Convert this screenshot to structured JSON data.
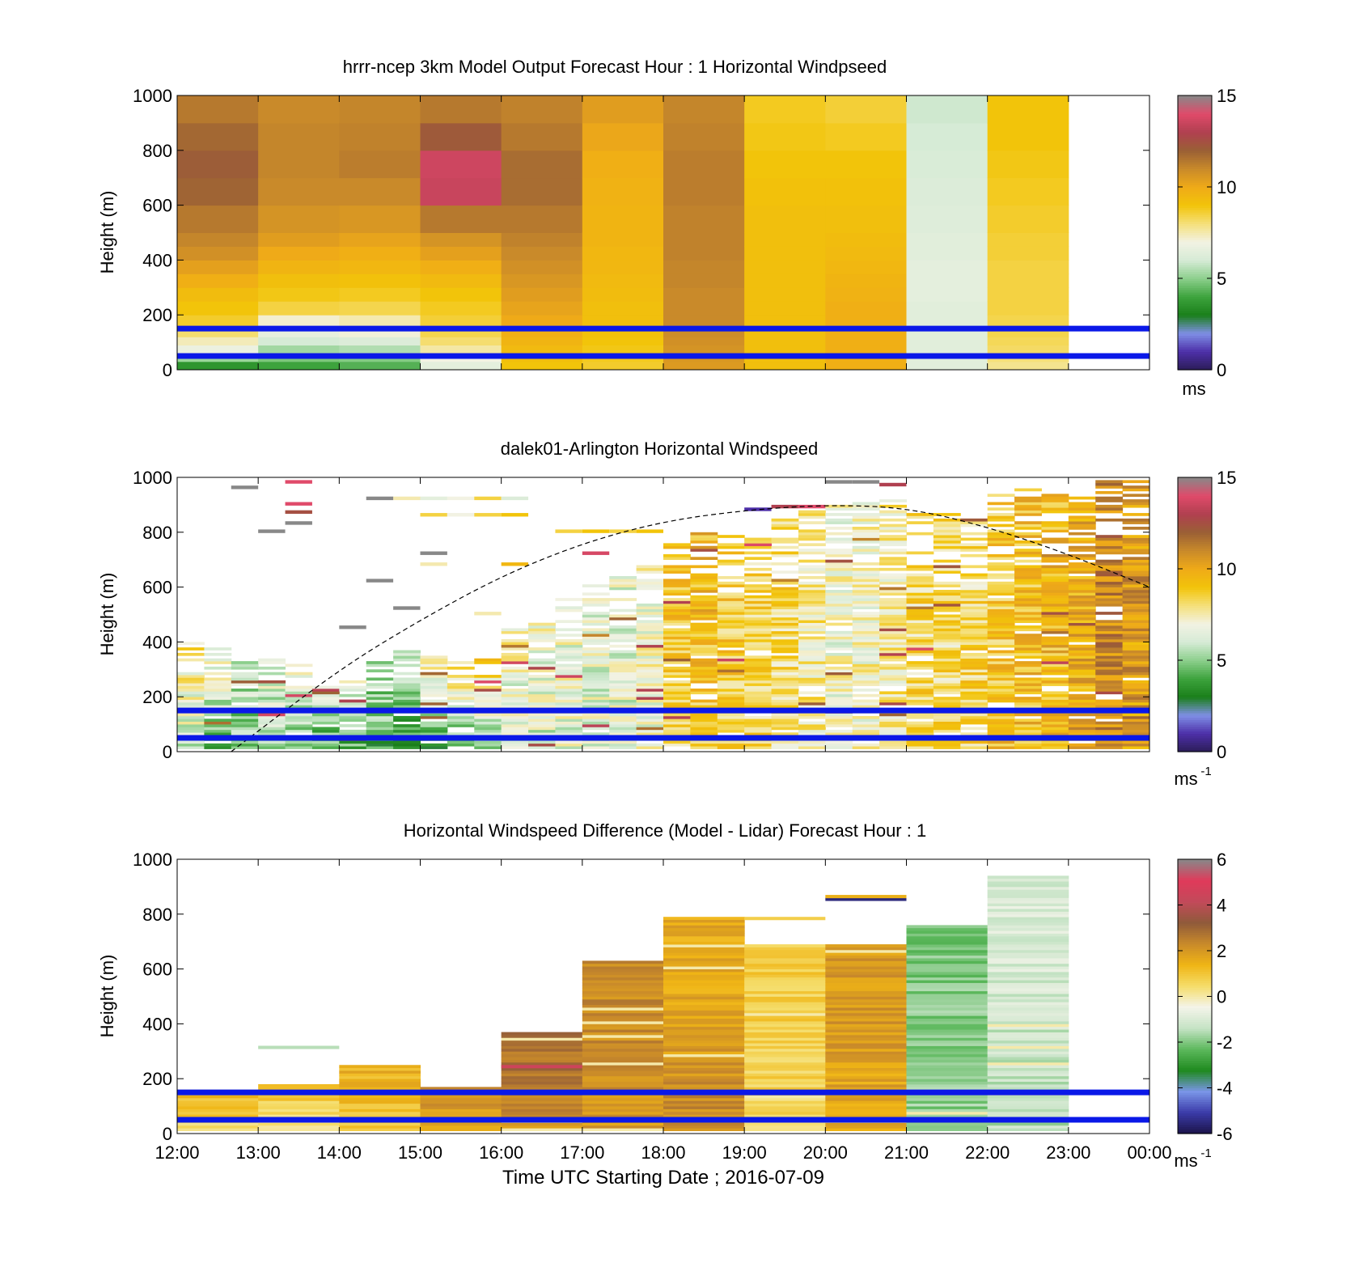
{
  "figure": {
    "x_label": "Time UTC  Starting Date ; 2016-07-09"
  },
  "colormaps": {
    "speed": [
      "#2b1d57",
      "#4d2fa8",
      "#7f8fe6",
      "#1a7f1a",
      "#3da33d",
      "#8ccf8c",
      "#d6ebd6",
      "#f2f2e3",
      "#f5e07a",
      "#f2c40a",
      "#efaa18",
      "#c98a2a",
      "#9a6035",
      "#b04050",
      "#e04a6a",
      "#888888"
    ],
    "diff": [
      "#1b1448",
      "#3b3aa8",
      "#7a95e8",
      "#1f8a1f",
      "#5cb85c",
      "#c5e3c5",
      "#f4f4ea",
      "#f5dd6a",
      "#f0b515",
      "#c98a2a",
      "#8f5a3a",
      "#c24a5a",
      "#e03a5a",
      "#888888"
    ]
  },
  "chart_data": [
    {
      "type": "heatmap",
      "title": "hrrr-ncep 3km Model Output   Forecast Hour : 1 Horizontal Windpseed",
      "ylabel": "Height (m)",
      "xlim": [
        "12:00",
        "00:00"
      ],
      "ylim": [
        0,
        1000
      ],
      "colorbar": {
        "min": 0,
        "max": 15,
        "ticks": [
          0,
          5,
          10,
          15
        ],
        "unit": "ms"
      },
      "heights": [
        0,
        30,
        60,
        90,
        120,
        150,
        200,
        250,
        300,
        350,
        400,
        450,
        500,
        600,
        700,
        800,
        900,
        1000
      ],
      "columns": [
        {
          "start": "12:00",
          "values": [
            3.6,
            5.2,
            6.8,
            7.4,
            8.1,
            8.7,
            9.0,
            9.3,
            9.8,
            10.3,
            10.8,
            11.1,
            11.4,
            11.9,
            12.1,
            11.8,
            11.4
          ]
        },
        {
          "start": "13:00",
          "values": [
            4.0,
            4.8,
            5.3,
            6.0,
            6.6,
            7.2,
            8.5,
            8.9,
            9.2,
            9.6,
            10.0,
            10.4,
            10.7,
            11.0,
            11.1,
            11.1,
            11.0
          ]
        },
        {
          "start": "14:00",
          "values": [
            4.3,
            4.9,
            5.5,
            6.2,
            7.1,
            7.5,
            8.4,
            8.8,
            9.1,
            9.5,
            9.8,
            10.2,
            10.6,
            11.0,
            11.3,
            11.2,
            11.1
          ]
        },
        {
          "start": "15:00",
          "values": [
            6.5,
            7.0,
            7.6,
            8.1,
            8.4,
            8.6,
            8.8,
            9.0,
            9.4,
            9.8,
            10.3,
            10.7,
            11.4,
            13.5,
            13.6,
            12.2,
            11.4
          ]
        },
        {
          "start": "16:00",
          "values": [
            9.0,
            9.2,
            9.4,
            9.6,
            9.8,
            10.0,
            10.2,
            10.4,
            10.6,
            10.8,
            11.0,
            11.2,
            11.4,
            11.7,
            11.7,
            11.4,
            11.2
          ]
        },
        {
          "start": "17:00",
          "values": [
            8.7,
            8.8,
            8.9,
            9.0,
            9.1,
            9.2,
            9.2,
            9.3,
            9.4,
            9.5,
            9.5,
            9.6,
            9.6,
            9.7,
            9.8,
            10.1,
            10.4
          ]
        },
        {
          "start": "18:00",
          "values": [
            10.5,
            10.6,
            10.7,
            10.8,
            10.9,
            11.0,
            11.0,
            11.0,
            11.1,
            11.1,
            11.2,
            11.2,
            11.2,
            11.3,
            11.3,
            11.2,
            11.1
          ]
        },
        {
          "start": "19:00",
          "values": [
            9.2,
            9.2,
            9.2,
            9.2,
            9.2,
            9.2,
            9.2,
            9.2,
            9.2,
            9.2,
            9.2,
            9.2,
            9.2,
            9.1,
            9.0,
            8.9,
            8.8
          ]
        },
        {
          "start": "20:00",
          "values": [
            9.8,
            9.8,
            9.8,
            9.8,
            9.8,
            9.8,
            9.8,
            9.7,
            9.6,
            9.5,
            9.4,
            9.3,
            9.2,
            9.1,
            9.0,
            8.8,
            8.6
          ]
        },
        {
          "start": "21:00",
          "values": [
            6.4,
            6.4,
            6.4,
            6.4,
            6.4,
            6.4,
            6.4,
            6.5,
            6.5,
            6.5,
            6.4,
            6.4,
            6.3,
            6.2,
            6.1,
            6.0,
            5.9
          ]
        },
        {
          "start": "22:00",
          "values": [
            7.8,
            8.0,
            8.2,
            8.3,
            8.4,
            8.4,
            8.5,
            8.5,
            8.5,
            8.5,
            8.6,
            8.6,
            8.7,
            8.8,
            8.9,
            9.0,
            9.0
          ]
        }
      ],
      "reference_lines_m": [
        50,
        150
      ]
    },
    {
      "type": "heatmap",
      "title": "dalek01-Arlington  Horizontal Windspeed",
      "ylabel": "Height (m)",
      "xlim": [
        "12:00",
        "00:00"
      ],
      "ylim": [
        0,
        1000
      ],
      "colorbar": {
        "min": 0,
        "max": 15,
        "ticks": [
          0,
          5,
          10,
          15
        ],
        "unit": "ms",
        "unit_exp": "-1"
      },
      "column_width_min": 20,
      "row_height_m": 10,
      "profile": [
        {
          "time": "12:00",
          "top": 400,
          "base": 6.0,
          "upper": 8.0
        },
        {
          "time": "12:20",
          "top": 380,
          "base": 4.5,
          "upper": 7.5
        },
        {
          "time": "12:40",
          "top": 360,
          "base": 4.5,
          "upper": 6.5
        },
        {
          "time": "13:00",
          "top": 360,
          "base": 5.0,
          "upper": 7.0
        },
        {
          "time": "13:20",
          "top": 330,
          "base": 4.0,
          "upper": 8.0
        },
        {
          "time": "13:40",
          "top": 250,
          "base": 4.0,
          "upper": 6.5
        },
        {
          "time": "14:00",
          "top": 260,
          "base": 4.2,
          "upper": 7.0
        },
        {
          "time": "14:20",
          "top": 350,
          "base": 4.0,
          "upper": 6.0
        },
        {
          "time": "14:40",
          "top": 380,
          "base": 3.8,
          "upper": 6.0
        },
        {
          "time": "15:00",
          "top": 350,
          "base": 4.0,
          "upper": 7.5
        },
        {
          "time": "15:20",
          "top": 350,
          "base": 4.5,
          "upper": 8.5
        },
        {
          "time": "15:40",
          "top": 340,
          "base": 5.0,
          "upper": 8.5
        },
        {
          "time": "16:00",
          "top": 450,
          "base": 6.0,
          "upper": 7.5
        },
        {
          "time": "16:20",
          "top": 480,
          "base": 6.2,
          "upper": 6.8
        },
        {
          "time": "16:40",
          "top": 560,
          "base": 6.5,
          "upper": 7.0
        },
        {
          "time": "17:00",
          "top": 620,
          "base": 6.5,
          "upper": 6.5
        },
        {
          "time": "17:20",
          "top": 650,
          "base": 6.4,
          "upper": 6.5
        },
        {
          "time": "17:40",
          "top": 680,
          "base": 6.8,
          "upper": 7.0
        },
        {
          "time": "18:00",
          "top": 760,
          "base": 8.5,
          "upper": 9.2
        },
        {
          "time": "18:20",
          "top": 800,
          "base": 8.8,
          "upper": 9.5
        },
        {
          "time": "18:40",
          "top": 800,
          "base": 8.6,
          "upper": 9.0
        },
        {
          "time": "19:00",
          "top": 830,
          "base": 8.2,
          "upper": 8.5
        },
        {
          "time": "19:20",
          "top": 860,
          "base": 8.0,
          "upper": 8.4
        },
        {
          "time": "19:40",
          "top": 880,
          "base": 7.5,
          "upper": 7.8
        },
        {
          "time": "20:00",
          "top": 900,
          "base": 7.0,
          "upper": 6.8
        },
        {
          "time": "20:20",
          "top": 920,
          "base": 7.2,
          "upper": 7.2
        },
        {
          "time": "20:40",
          "top": 920,
          "base": 7.5,
          "upper": 7.5
        },
        {
          "time": "21:00",
          "top": 900,
          "base": 8.5,
          "upper": 8.0
        },
        {
          "time": "21:20",
          "top": 880,
          "base": 8.2,
          "upper": 8.0
        },
        {
          "time": "21:40",
          "top": 860,
          "base": 8.5,
          "upper": 8.2
        },
        {
          "time": "22:00",
          "top": 940,
          "base": 9.0,
          "upper": 8.8
        },
        {
          "time": "22:20",
          "top": 960,
          "base": 9.2,
          "upper": 9.2
        },
        {
          "time": "22:40",
          "top": 970,
          "base": 9.4,
          "upper": 9.4
        },
        {
          "time": "23:00",
          "top": 980,
          "base": 9.8,
          "upper": 9.8
        },
        {
          "time": "23:20",
          "top": 990,
          "base": 10.8,
          "upper": 11.2
        },
        {
          "time": "23:40",
          "top": 1000,
          "base": 10.2,
          "upper": 10.6
        }
      ],
      "sparse_cells": [
        {
          "time": "12:40",
          "height": 960,
          "value": 15.0
        },
        {
          "time": "13:20",
          "height": 980,
          "value": 14.0
        },
        {
          "time": "13:20",
          "height": 900,
          "value": 14.0
        },
        {
          "time": "13:20",
          "height": 870,
          "value": 12.5
        },
        {
          "time": "13:00",
          "height": 800,
          "value": 15.0
        },
        {
          "time": "13:20",
          "height": 830,
          "value": 15.0
        },
        {
          "time": "14:20",
          "height": 620,
          "value": 15.0
        },
        {
          "time": "14:40",
          "height": 520,
          "value": 15.0
        },
        {
          "time": "14:00",
          "height": 450,
          "value": 15.0
        },
        {
          "time": "15:00",
          "height": 720,
          "value": 15.0
        },
        {
          "time": "15:00",
          "height": 680,
          "value": 7.5
        },
        {
          "time": "15:40",
          "height": 500,
          "value": 7.5
        },
        {
          "time": "16:00",
          "height": 680,
          "value": 9.5
        },
        {
          "time": "15:00",
          "height": 860,
          "value": 8.5
        },
        {
          "time": "15:20",
          "height": 860,
          "value": 7.0
        },
        {
          "time": "15:40",
          "height": 860,
          "value": 8.5
        },
        {
          "time": "16:00",
          "height": 860,
          "value": 9.0
        },
        {
          "time": "14:40",
          "height": 920,
          "value": 7.5
        },
        {
          "time": "15:00",
          "height": 920,
          "value": 6.5
        },
        {
          "time": "15:20",
          "height": 920,
          "value": 7.0
        },
        {
          "time": "15:40",
          "height": 920,
          "value": 8.5
        },
        {
          "time": "16:00",
          "height": 920,
          "value": 6.2
        },
        {
          "time": "14:20",
          "height": 920,
          "value": 15.0
        },
        {
          "time": "16:40",
          "height": 800,
          "value": 8.5
        },
        {
          "time": "17:00",
          "height": 800,
          "value": 9.0
        },
        {
          "time": "17:20",
          "height": 800,
          "value": 8.5
        },
        {
          "time": "17:40",
          "height": 800,
          "value": 9.0
        },
        {
          "time": "19:00",
          "height": 880,
          "value": 1.0
        },
        {
          "time": "19:20",
          "height": 890,
          "value": 13.0
        },
        {
          "time": "19:40",
          "height": 890,
          "value": 14.0
        },
        {
          "time": "20:20",
          "height": 980,
          "value": 15.0
        },
        {
          "time": "20:40",
          "height": 970,
          "value": 13.0
        },
        {
          "time": "20:00",
          "height": 980,
          "value": 15.0
        },
        {
          "time": "17:00",
          "height": 720,
          "value": 13.8
        }
      ],
      "dashed_curve": [
        {
          "time": "12:40",
          "height": 0
        },
        {
          "time": "14:00",
          "height": 300
        },
        {
          "time": "15:00",
          "height": 480
        },
        {
          "time": "16:00",
          "height": 640
        },
        {
          "time": "17:00",
          "height": 760
        },
        {
          "time": "18:00",
          "height": 840
        },
        {
          "time": "19:00",
          "height": 880
        },
        {
          "time": "20:00",
          "height": 900
        },
        {
          "time": "21:00",
          "height": 890
        },
        {
          "time": "22:00",
          "height": 820
        },
        {
          "time": "23:00",
          "height": 720
        },
        {
          "time": "00:00",
          "height": 600
        }
      ],
      "reference_lines_m": [
        50,
        150
      ]
    },
    {
      "type": "heatmap",
      "title": "Horizontal Windspeed Difference (Model - Lidar) Forecast Hour : 1",
      "ylabel": "Height (m)",
      "xlabel": "Time UTC  Starting Date ; 2016-07-09",
      "xticks": [
        "12:00",
        "13:00",
        "14:00",
        "15:00",
        "16:00",
        "17:00",
        "18:00",
        "19:00",
        "20:00",
        "21:00",
        "22:00",
        "23:00",
        "00:00"
      ],
      "ylim": [
        0,
        1000
      ],
      "colorbar": {
        "min": -6,
        "max": 6,
        "ticks": [
          -6,
          -4,
          -2,
          0,
          2,
          4,
          6
        ],
        "unit": "ms",
        "unit_exp": "-1"
      },
      "columns": [
        {
          "start": "12:00",
          "top": 160,
          "mean": 1.2,
          "low": 0.4
        },
        {
          "start": "13:00",
          "top": 180,
          "mean": 0.8,
          "low": 0.2,
          "extra": [
            {
              "height": 310,
              "value": -1.5
            }
          ]
        },
        {
          "start": "14:00",
          "top": 245,
          "mean": 1.4,
          "low": 0.8
        },
        {
          "start": "15:00",
          "top": 170,
          "mean": 2.0,
          "low": 1.4
        },
        {
          "start": "16:00",
          "top": 370,
          "mean": 2.8,
          "low": 2.0,
          "extra": [
            {
              "height": 240,
              "value": 4.5
            }
          ]
        },
        {
          "start": "17:00",
          "top": 630,
          "mean": 2.3,
          "low": 2.0
        },
        {
          "start": "18:00",
          "top": 790,
          "mean": 1.6,
          "low": 2.4
        },
        {
          "start": "19:00",
          "top": 690,
          "mean": 0.8,
          "low": 0.6,
          "extra": [
            {
              "height": 780,
              "value": 0.8
            }
          ]
        },
        {
          "start": "20:00",
          "top": 690,
          "mean": 2.0,
          "low": 1.6,
          "extra": [
            {
              "height": 850,
              "value": -5.5
            },
            {
              "height": 860,
              "value": 1.5
            }
          ]
        },
        {
          "start": "21:00",
          "top": 760,
          "mean": -2.0,
          "low": -1.8
        },
        {
          "start": "22:00",
          "top": 940,
          "mean": -1.0,
          "low": -1.5
        }
      ],
      "reference_lines_m": [
        50,
        150
      ]
    }
  ]
}
